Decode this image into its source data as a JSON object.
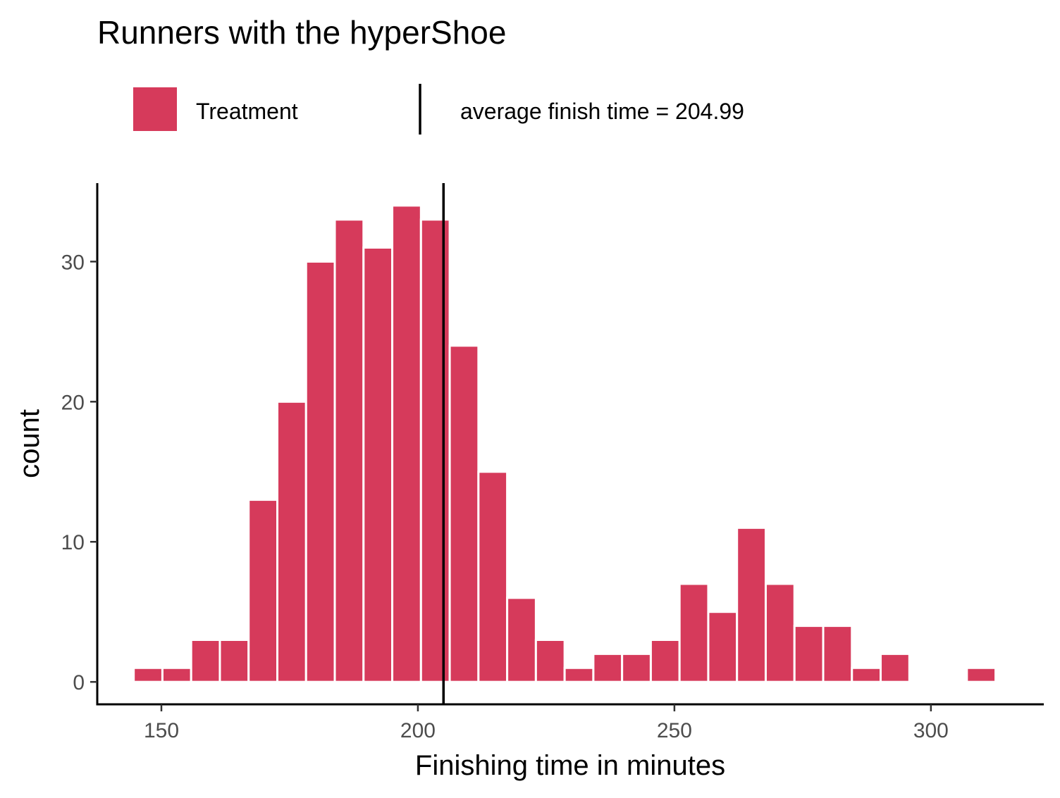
{
  "chart_data": {
    "type": "bar",
    "title": "Runners with the hyperShoe",
    "xlabel": "Finishing time in minutes",
    "ylabel": "count",
    "xlim": [
      137.5,
      322
    ],
    "ylim": [
      -1.6,
      35.6
    ],
    "x_ticks": [
      150,
      200,
      250,
      300
    ],
    "y_ticks": [
      0,
      10,
      20,
      30
    ],
    "grid": false,
    "legend_position": "top",
    "legend": {
      "fill_label": "Treatment",
      "line_label": "average finish time = 204.99"
    },
    "fill_color": "#D63A5B",
    "line_color": "#000000",
    "vline": 204.99,
    "bin_width": 5.6,
    "bins": [
      {
        "x": 147.4,
        "count": 1
      },
      {
        "x": 153.0,
        "count": 1
      },
      {
        "x": 158.6,
        "count": 3
      },
      {
        "x": 164.2,
        "count": 3
      },
      {
        "x": 169.8,
        "count": 13
      },
      {
        "x": 175.4,
        "count": 20
      },
      {
        "x": 181.0,
        "count": 30
      },
      {
        "x": 186.6,
        "count": 33
      },
      {
        "x": 192.2,
        "count": 31
      },
      {
        "x": 197.8,
        "count": 34
      },
      {
        "x": 203.4,
        "count": 33
      },
      {
        "x": 209.0,
        "count": 24
      },
      {
        "x": 214.6,
        "count": 15
      },
      {
        "x": 220.2,
        "count": 6
      },
      {
        "x": 225.8,
        "count": 3
      },
      {
        "x": 231.4,
        "count": 1
      },
      {
        "x": 237.0,
        "count": 2
      },
      {
        "x": 242.6,
        "count": 2
      },
      {
        "x": 248.2,
        "count": 3
      },
      {
        "x": 253.8,
        "count": 7
      },
      {
        "x": 259.4,
        "count": 5
      },
      {
        "x": 265.0,
        "count": 11
      },
      {
        "x": 270.6,
        "count": 7
      },
      {
        "x": 276.2,
        "count": 4
      },
      {
        "x": 281.8,
        "count": 4
      },
      {
        "x": 287.4,
        "count": 1
      },
      {
        "x": 293.0,
        "count": 2
      },
      {
        "x": 298.6,
        "count": 0
      },
      {
        "x": 304.2,
        "count": 0
      },
      {
        "x": 309.8,
        "count": 1
      }
    ]
  }
}
